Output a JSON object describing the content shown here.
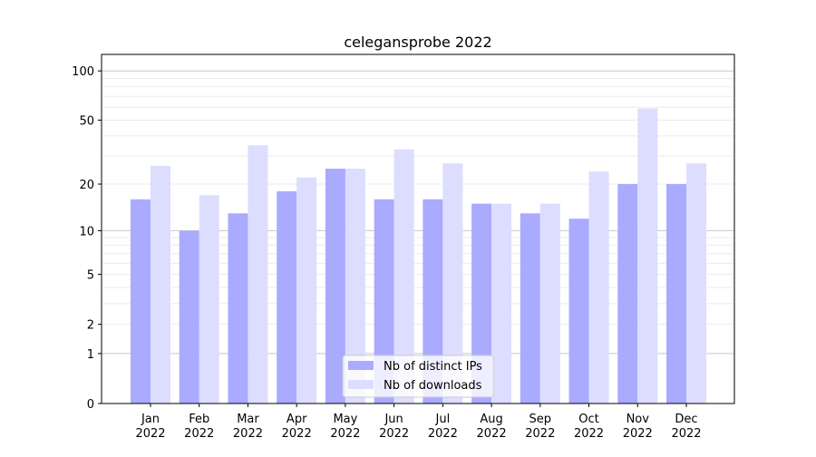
{
  "chart_data": {
    "type": "bar",
    "title": "celegansprobe 2022",
    "xlabel": "",
    "ylabel": "",
    "yscale": "log(1+x)",
    "ylim": [
      0,
      126
    ],
    "yticks": [
      0,
      1,
      2,
      5,
      10,
      20,
      50,
      100
    ],
    "grid": true,
    "legend_position": "bottom-center",
    "categories": [
      "Jan\n2022",
      "Feb\n2022",
      "Mar\n2022",
      "Apr\n2022",
      "May\n2022",
      "Jun\n2022",
      "Jul\n2022",
      "Aug\n2022",
      "Sep\n2022",
      "Oct\n2022",
      "Nov\n2022",
      "Dec\n2022"
    ],
    "series": [
      {
        "name": "Nb of distinct IPs",
        "color": "#aaaaff",
        "values": [
          16,
          10,
          13,
          18,
          25,
          16,
          16,
          15,
          13,
          12,
          20,
          20
        ]
      },
      {
        "name": "Nb of downloads",
        "color": "#ddddff",
        "values": [
          26,
          17,
          35,
          22,
          25,
          33,
          27,
          15,
          15,
          24,
          59,
          27
        ]
      }
    ]
  }
}
